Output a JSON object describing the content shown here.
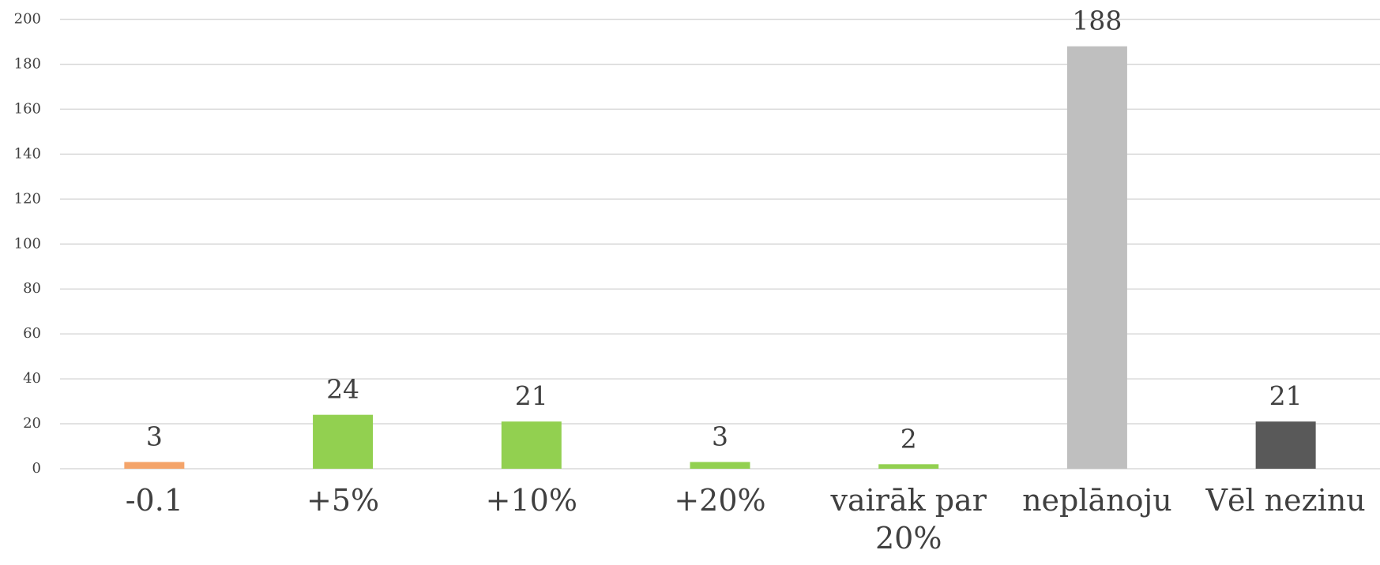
{
  "chart_data": {
    "type": "bar",
    "categories": [
      "-0.1",
      "+5%",
      "+10%",
      "+20%",
      "vairāk par 20%",
      "neplānoju",
      "Vēl nezinu"
    ],
    "values": [
      3,
      24,
      21,
      3,
      2,
      188,
      21
    ],
    "colors": [
      "#f4a46a",
      "#92d050",
      "#92d050",
      "#92d050",
      "#92d050",
      "#bfbfbf",
      "#595959"
    ],
    "ylim": [
      0,
      200
    ],
    "yticks": [
      0,
      20,
      40,
      60,
      80,
      100,
      120,
      140,
      160,
      180,
      200
    ],
    "grid": true
  }
}
